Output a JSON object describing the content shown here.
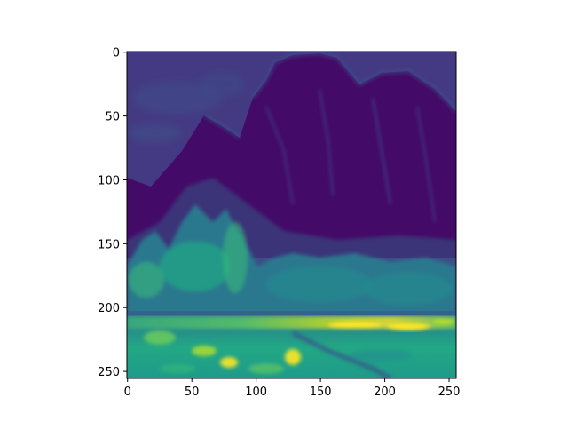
{
  "chart_data": {
    "type": "heatmap",
    "title": "",
    "xlabel": "",
    "ylabel": "",
    "image_size": [
      256,
      256
    ],
    "colormap": "viridis",
    "value_range": [
      0,
      1
    ],
    "xlim": [
      -0.5,
      255.5
    ],
    "ylim": [
      255.5,
      -0.5
    ],
    "x_ticks": [
      0,
      50,
      100,
      150,
      200,
      250
    ],
    "y_ticks": [
      0,
      50,
      100,
      150,
      200,
      250
    ],
    "x_tick_labels": [
      "0",
      "50",
      "100",
      "150",
      "200",
      "250"
    ],
    "y_tick_labels": [
      "0",
      "50",
      "100",
      "150",
      "200",
      "250"
    ],
    "grid": false,
    "content": "edge-filtered landscape: mountains with sky at top, trees in middle, bright water band near rows 205-215",
    "colors": {
      "low": "#440154",
      "mid": "#21908d",
      "high": "#fde725",
      "spine": "#000000"
    }
  }
}
